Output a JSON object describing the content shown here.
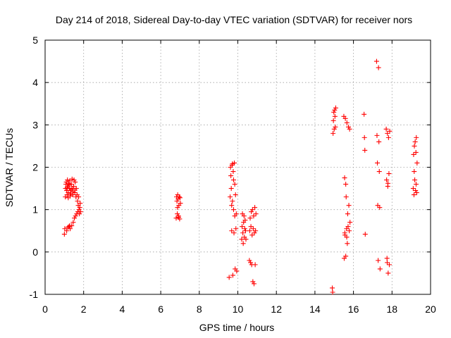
{
  "chart_data": {
    "type": "scatter",
    "title": "Day 214 of 2018, Sidereal Day-to-day VTEC variation (SDTVAR) for receiver nors",
    "xlabel": "GPS time / hours",
    "ylabel": "SDTVAR / TECUs",
    "xlim": [
      0,
      20
    ],
    "ylim": [
      -1,
      5
    ],
    "xticks": [
      "0",
      "2",
      "4",
      "6",
      "8",
      "10",
      "12",
      "14",
      "16",
      "18",
      "20"
    ],
    "yticks": [
      "-1",
      "0",
      "1",
      "2",
      "3",
      "4",
      "5"
    ],
    "grid": true,
    "marker": "+",
    "color": "#ff0000",
    "series": [
      {
        "name": "SDTVAR",
        "points": [
          [
            1.0,
            0.42
          ],
          [
            1.02,
            0.55
          ],
          [
            1.05,
            1.3
          ],
          [
            1.06,
            1.5
          ],
          [
            1.08,
            1.6
          ],
          [
            1.1,
            1.65
          ],
          [
            1.12,
            1.45
          ],
          [
            1.14,
            1.35
          ],
          [
            1.16,
            1.7
          ],
          [
            1.18,
            1.55
          ],
          [
            1.2,
            1.4
          ],
          [
            1.22,
            1.62
          ],
          [
            1.24,
            0.6
          ],
          [
            1.26,
            1.5
          ],
          [
            1.28,
            1.68
          ],
          [
            1.3,
            0.55
          ],
          [
            1.32,
            1.45
          ],
          [
            1.34,
            1.38
          ],
          [
            1.36,
            1.6
          ],
          [
            1.38,
            0.62
          ],
          [
            1.4,
            1.72
          ],
          [
            1.42,
            1.5
          ],
          [
            1.44,
            1.35
          ],
          [
            1.46,
            0.7
          ],
          [
            1.48,
            1.55
          ],
          [
            1.5,
            1.7
          ],
          [
            1.52,
            0.8
          ],
          [
            1.54,
            1.4
          ],
          [
            1.56,
            1.65
          ],
          [
            1.58,
            0.85
          ],
          [
            1.6,
            1.3
          ],
          [
            1.62,
            1.5
          ],
          [
            1.64,
            0.9
          ],
          [
            1.66,
            1.35
          ],
          [
            1.68,
            1.2
          ],
          [
            1.7,
            0.95
          ],
          [
            1.72,
            1.1
          ],
          [
            1.74,
            1.3
          ],
          [
            1.76,
            1.0
          ],
          [
            1.78,
            0.9
          ],
          [
            1.8,
            1.05
          ],
          [
            1.82,
            1.15
          ],
          [
            1.84,
            0.95
          ],
          [
            1.15,
            1.52
          ],
          [
            1.25,
            1.58
          ],
          [
            1.35,
            1.48
          ],
          [
            1.45,
            1.42
          ],
          [
            1.55,
            1.46
          ],
          [
            1.2,
            1.28
          ],
          [
            1.3,
            1.32
          ],
          [
            1.12,
            0.5
          ],
          [
            1.18,
            0.58
          ],
          [
            1.28,
            0.62
          ],
          [
            6.8,
            0.8
          ],
          [
            6.82,
            1.3
          ],
          [
            6.84,
            1.2
          ],
          [
            6.86,
            0.9
          ],
          [
            6.88,
            1.35
          ],
          [
            6.9,
            1.25
          ],
          [
            6.92,
            0.85
          ],
          [
            6.94,
            1.1
          ],
          [
            6.96,
            1.3
          ],
          [
            6.98,
            0.78
          ],
          [
            7.0,
            1.28
          ],
          [
            7.02,
            1.15
          ],
          [
            6.87,
            1.05
          ],
          [
            6.93,
            0.82
          ],
          [
            9.55,
            -0.6
          ],
          [
            9.6,
            1.3
          ],
          [
            9.62,
            2.0
          ],
          [
            9.64,
            1.8
          ],
          [
            9.66,
            1.5
          ],
          [
            9.68,
            0.5
          ],
          [
            9.7,
            2.05
          ],
          [
            9.72,
            1.2
          ],
          [
            9.74,
            -0.55
          ],
          [
            9.76,
            1.9
          ],
          [
            9.78,
            1.0
          ],
          [
            9.8,
            0.45
          ],
          [
            9.82,
            2.1
          ],
          [
            9.84,
            1.6
          ],
          [
            9.86,
            -0.4
          ],
          [
            9.88,
            1.35
          ],
          [
            9.9,
            0.55
          ],
          [
            9.92,
            0.9
          ],
          [
            9.94,
            -0.45
          ],
          [
            9.68,
            1.1
          ],
          [
            9.78,
            1.7
          ],
          [
            9.72,
            2.08
          ],
          [
            9.84,
            0.85
          ],
          [
            10.2,
            0.3
          ],
          [
            10.22,
            0.6
          ],
          [
            10.24,
            0.9
          ],
          [
            10.26,
            0.45
          ],
          [
            10.28,
            0.2
          ],
          [
            10.3,
            0.7
          ],
          [
            10.32,
            0.85
          ],
          [
            10.34,
            0.35
          ],
          [
            10.36,
            0.55
          ],
          [
            10.38,
            0.75
          ],
          [
            10.4,
            0.5
          ],
          [
            10.42,
            0.3
          ],
          [
            10.6,
            -0.2
          ],
          [
            10.62,
            0.5
          ],
          [
            10.64,
            0.8
          ],
          [
            10.66,
            -0.25
          ],
          [
            10.68,
            0.6
          ],
          [
            10.7,
            0.95
          ],
          [
            10.72,
            -0.3
          ],
          [
            10.74,
            0.4
          ],
          [
            10.76,
            1.0
          ],
          [
            10.78,
            -0.7
          ],
          [
            10.8,
            0.55
          ],
          [
            10.82,
            0.85
          ],
          [
            10.84,
            -0.75
          ],
          [
            10.86,
            0.45
          ],
          [
            10.88,
            1.05
          ],
          [
            10.9,
            -0.3
          ],
          [
            10.92,
            0.5
          ],
          [
            10.94,
            0.9
          ],
          [
            14.9,
            -0.85
          ],
          [
            14.92,
            -0.95
          ],
          [
            14.94,
            2.8
          ],
          [
            14.96,
            3.1
          ],
          [
            14.98,
            3.3
          ],
          [
            15.0,
            2.9
          ],
          [
            15.02,
            3.35
          ],
          [
            15.04,
            3.2
          ],
          [
            15.06,
            2.95
          ],
          [
            15.08,
            3.4
          ],
          [
            15.5,
            3.2
          ],
          [
            15.52,
            -0.15
          ],
          [
            15.54,
            1.75
          ],
          [
            15.56,
            0.4
          ],
          [
            15.58,
            3.15
          ],
          [
            15.6,
            -0.1
          ],
          [
            15.62,
            1.3
          ],
          [
            15.64,
            0.55
          ],
          [
            15.66,
            3.05
          ],
          [
            15.68,
            0.2
          ],
          [
            15.7,
            0.9
          ],
          [
            15.72,
            0.6
          ],
          [
            15.74,
            2.95
          ],
          [
            15.76,
            1.1
          ],
          [
            15.78,
            0.5
          ],
          [
            15.8,
            2.9
          ],
          [
            15.82,
            0.7
          ],
          [
            15.55,
            0.45
          ],
          [
            15.6,
            1.6
          ],
          [
            15.65,
            0.35
          ],
          [
            16.55,
            3.25
          ],
          [
            16.57,
            2.7
          ],
          [
            16.59,
            2.4
          ],
          [
            16.61,
            0.42
          ],
          [
            17.2,
            4.5
          ],
          [
            17.22,
            2.75
          ],
          [
            17.24,
            2.1
          ],
          [
            17.26,
            1.1
          ],
          [
            17.28,
            -0.2
          ],
          [
            17.3,
            4.35
          ],
          [
            17.32,
            2.6
          ],
          [
            17.34,
            1.9
          ],
          [
            17.36,
            1.05
          ],
          [
            17.38,
            -0.4
          ],
          [
            17.7,
            2.9
          ],
          [
            17.72,
            1.7
          ],
          [
            17.74,
            -0.15
          ],
          [
            17.76,
            2.8
          ],
          [
            17.78,
            1.55
          ],
          [
            17.8,
            -0.5
          ],
          [
            17.82,
            2.7
          ],
          [
            17.84,
            1.85
          ],
          [
            17.86,
            -0.3
          ],
          [
            17.88,
            2.85
          ],
          [
            17.75,
            -0.25
          ],
          [
            17.79,
            1.62
          ],
          [
            19.1,
            1.5
          ],
          [
            19.12,
            2.3
          ],
          [
            19.14,
            1.35
          ],
          [
            19.16,
            2.5
          ],
          [
            19.18,
            1.7
          ],
          [
            19.2,
            2.6
          ],
          [
            19.22,
            1.45
          ],
          [
            19.24,
            2.35
          ],
          [
            19.26,
            2.7
          ],
          [
            19.28,
            1.4
          ],
          [
            19.3,
            2.1
          ],
          [
            19.15,
            1.9
          ],
          [
            19.25,
            1.6
          ]
        ]
      }
    ]
  }
}
